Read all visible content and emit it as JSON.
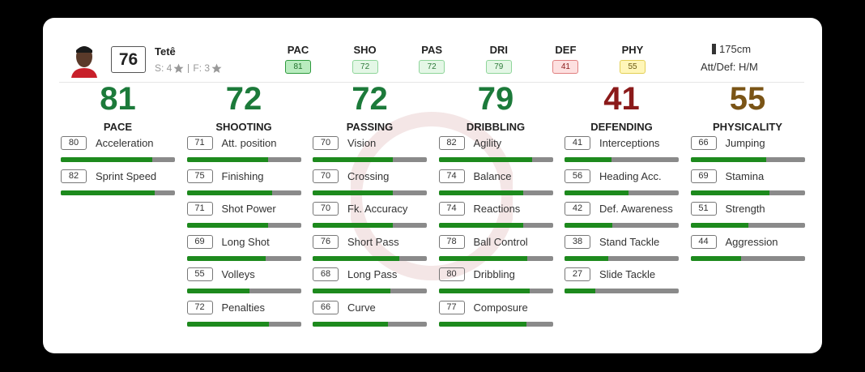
{
  "player": {
    "rating": 76,
    "name": "Tetê",
    "skills": "S: 4",
    "weak_foot": "F: 3",
    "height": "175cm",
    "work_rate": "Att/Def: H/M"
  },
  "summary": [
    {
      "label": "PAC",
      "value": 81
    },
    {
      "label": "SHO",
      "value": 72
    },
    {
      "label": "PAS",
      "value": 72
    },
    {
      "label": "DRI",
      "value": 79
    },
    {
      "label": "DEF",
      "value": 41
    },
    {
      "label": "PHY",
      "value": 55
    }
  ],
  "categories": [
    {
      "value": 81,
      "name": "PACE",
      "stats": [
        {
          "value": 80,
          "name": "Acceleration"
        },
        {
          "value": 82,
          "name": "Sprint Speed"
        }
      ]
    },
    {
      "value": 72,
      "name": "SHOOTING",
      "stats": [
        {
          "value": 71,
          "name": "Att. position"
        },
        {
          "value": 75,
          "name": "Finishing"
        },
        {
          "value": 71,
          "name": "Shot Power"
        },
        {
          "value": 69,
          "name": "Long Shot"
        },
        {
          "value": 55,
          "name": "Volleys"
        },
        {
          "value": 72,
          "name": "Penalties"
        }
      ]
    },
    {
      "value": 72,
      "name": "PASSING",
      "stats": [
        {
          "value": 70,
          "name": "Vision"
        },
        {
          "value": 70,
          "name": "Crossing"
        },
        {
          "value": 70,
          "name": "Fk. Accuracy"
        },
        {
          "value": 76,
          "name": "Short Pass"
        },
        {
          "value": 68,
          "name": "Long Pass"
        },
        {
          "value": 66,
          "name": "Curve"
        }
      ]
    },
    {
      "value": 79,
      "name": "DRIBBLING",
      "stats": [
        {
          "value": 82,
          "name": "Agility"
        },
        {
          "value": 74,
          "name": "Balance"
        },
        {
          "value": 74,
          "name": "Reactions"
        },
        {
          "value": 78,
          "name": "Ball Control"
        },
        {
          "value": 80,
          "name": "Dribbling"
        },
        {
          "value": 77,
          "name": "Composure"
        }
      ]
    },
    {
      "value": 41,
      "name": "DEFENDING",
      "stats": [
        {
          "value": 41,
          "name": "Interceptions"
        },
        {
          "value": 56,
          "name": "Heading Acc."
        },
        {
          "value": 42,
          "name": "Def. Awareness"
        },
        {
          "value": 38,
          "name": "Stand Tackle"
        },
        {
          "value": 27,
          "name": "Slide Tackle"
        }
      ]
    },
    {
      "value": 55,
      "name": "PHYSICALITY",
      "stats": [
        {
          "value": 66,
          "name": "Jumping"
        },
        {
          "value": 69,
          "name": "Stamina"
        },
        {
          "value": 51,
          "name": "Strength"
        },
        {
          "value": 44,
          "name": "Aggression"
        }
      ]
    }
  ]
}
